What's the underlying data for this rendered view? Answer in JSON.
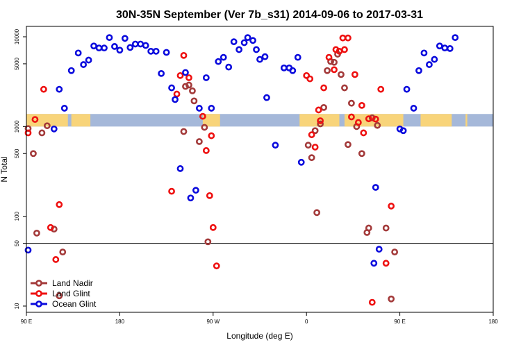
{
  "chart_data": {
    "type": "scatter",
    "title": "30N-35N September (Ver 7b_s31)   2014-09-06 to 2017-03-31",
    "xlabel": "Longitude (deg E)",
    "ylabel": "N Total",
    "y_scale": "log",
    "xlim": [
      -90,
      180
    ],
    "ylim": [
      8,
      13000
    ],
    "x_ticks": [
      {
        "value": -90,
        "label": "90 E"
      },
      {
        "value": -36,
        "label": "180"
      },
      {
        "value": 18,
        "label": "90 W"
      },
      {
        "value": 72,
        "label": "0"
      },
      {
        "value": 126,
        "label": "90 E"
      },
      {
        "value": 180,
        "label": "180"
      }
    ],
    "y_ticks": [
      {
        "value": 10,
        "label": "10"
      },
      {
        "value": 50,
        "label": "50"
      },
      {
        "value": 100,
        "label": "100"
      },
      {
        "value": 500,
        "label": "500"
      },
      {
        "value": 1000,
        "label": "1000"
      },
      {
        "value": 5000,
        "label": "5000"
      },
      {
        "value": 10000,
        "label": "10000"
      }
    ],
    "reference_line": {
      "y": 50,
      "color": "#000000"
    },
    "land_mask": {
      "y_low": 1000,
      "y_high": 1380,
      "ocean_color": "#a5b8d9",
      "land_color": "#f8d47a",
      "land_spans": [
        [
          -90,
          -66
        ],
        [
          -64,
          -53
        ],
        [
          12,
          22
        ],
        [
          68,
          91
        ],
        [
          94,
          128
        ],
        [
          138,
          156
        ],
        [
          164,
          165
        ]
      ]
    },
    "legend": [
      {
        "name": "Land Nadir",
        "color": "#a33a3a"
      },
      {
        "name": "Land Glint",
        "color": "#ee1111"
      },
      {
        "name": "Ocean Glint",
        "color": "#0b0bdd"
      }
    ],
    "series": [
      {
        "name": "Land Nadir",
        "color": "#a33a3a",
        "points": [
          [
            -89,
            950
          ],
          [
            -86,
            500
          ],
          [
            -84,
            65
          ],
          [
            -81,
            850
          ],
          [
            -78,
            1020
          ],
          [
            -74,
            72
          ],
          [
            -71,
            13
          ],
          [
            -69,
            40
          ],
          [
            1,
            880
          ],
          [
            2,
            2800
          ],
          [
            4,
            2900
          ],
          [
            6,
            2500
          ],
          [
            7,
            1930
          ],
          [
            10,
            680
          ],
          [
            13,
            980
          ],
          [
            15,
            52
          ],
          [
            73,
            620
          ],
          [
            75,
            450
          ],
          [
            77,
            900
          ],
          [
            78,
            110
          ],
          [
            80,
            1070
          ],
          [
            82,
            1630
          ],
          [
            84,
            4200
          ],
          [
            86,
            5300
          ],
          [
            88,
            5200
          ],
          [
            90,
            6400
          ],
          [
            92,
            3800
          ],
          [
            94,
            2700
          ],
          [
            96,
            630
          ],
          [
            98,
            1820
          ],
          [
            101,
            1000
          ],
          [
            104,
            500
          ],
          [
            107,
            66
          ],
          [
            108,
            74
          ],
          [
            110,
            1250
          ],
          [
            113,
            1030
          ],
          [
            118,
            74
          ],
          [
            121,
            12
          ],
          [
            123,
            40
          ]
        ]
      },
      {
        "name": "Land Glint",
        "color": "#ee1111",
        "points": [
          [
            -89,
            850
          ],
          [
            -85,
            1200
          ],
          [
            -80,
            2600
          ],
          [
            -76,
            75
          ],
          [
            -73,
            33
          ],
          [
            -71,
            135
          ],
          [
            -6,
            190
          ],
          [
            -3,
            2300
          ],
          [
            -1,
            3700
          ],
          [
            1,
            6200
          ],
          [
            4,
            3500
          ],
          [
            12,
            1300
          ],
          [
            14,
            540
          ],
          [
            16,
            170
          ],
          [
            17,
            790
          ],
          [
            18,
            75
          ],
          [
            20,
            28
          ],
          [
            72,
            3700
          ],
          [
            74,
            3400
          ],
          [
            75,
            810
          ],
          [
            77,
            590
          ],
          [
            79,
            1530
          ],
          [
            80,
            1160
          ],
          [
            82,
            2700
          ],
          [
            85,
            5900
          ],
          [
            88,
            4300
          ],
          [
            89,
            7200
          ],
          [
            91,
            6900
          ],
          [
            93,
            9700
          ],
          [
            94,
            7200
          ],
          [
            96,
            9700
          ],
          [
            98,
            1280
          ],
          [
            100,
            3800
          ],
          [
            102,
            1110
          ],
          [
            104,
            1720
          ],
          [
            105,
            850
          ],
          [
            108,
            1220
          ],
          [
            110,
            11
          ],
          [
            112,
            1210
          ],
          [
            115,
            2600
          ],
          [
            118,
            30
          ],
          [
            121,
            130
          ]
        ]
      },
      {
        "name": "Ocean Glint",
        "color": "#0b0bdd",
        "points": [
          [
            -89,
            42
          ],
          [
            -74,
            940
          ],
          [
            -71,
            2600
          ],
          [
            -68,
            1600
          ],
          [
            -64,
            4200
          ],
          [
            -60,
            6600
          ],
          [
            -57,
            4900
          ],
          [
            -54,
            5500
          ],
          [
            -51,
            7900
          ],
          [
            -48,
            7500
          ],
          [
            -45,
            7500
          ],
          [
            -42,
            9800
          ],
          [
            -39,
            7800
          ],
          [
            -36,
            7100
          ],
          [
            -33,
            9600
          ],
          [
            -30,
            7600
          ],
          [
            -27,
            8300
          ],
          [
            -24,
            8300
          ],
          [
            -21,
            8000
          ],
          [
            -18,
            6900
          ],
          [
            -15,
            6900
          ],
          [
            -12,
            3900
          ],
          [
            -9,
            6700
          ],
          [
            -6,
            2700
          ],
          [
            -4,
            2000
          ],
          [
            -1,
            340
          ],
          [
            2,
            4000
          ],
          [
            5,
            160
          ],
          [
            8,
            195
          ],
          [
            10,
            1600
          ],
          [
            14,
            3500
          ],
          [
            17,
            1600
          ],
          [
            21,
            5300
          ],
          [
            24,
            5900
          ],
          [
            27,
            4600
          ],
          [
            30,
            8800
          ],
          [
            33,
            7200
          ],
          [
            36,
            8600
          ],
          [
            38,
            9800
          ],
          [
            41,
            9100
          ],
          [
            43,
            7200
          ],
          [
            45,
            5600
          ],
          [
            48,
            6000
          ],
          [
            49,
            2100
          ],
          [
            54,
            620
          ],
          [
            59,
            4500
          ],
          [
            62,
            4500
          ],
          [
            64,
            4200
          ],
          [
            67,
            5900
          ],
          [
            69,
            400
          ],
          [
            112,
            210
          ],
          [
            111,
            30
          ],
          [
            114,
            43
          ],
          [
            126,
            940
          ],
          [
            128,
            900
          ],
          [
            130,
            2600
          ],
          [
            134,
            1600
          ],
          [
            137,
            4200
          ],
          [
            140,
            6600
          ],
          [
            143,
            4900
          ],
          [
            146,
            5600
          ],
          [
            149,
            7900
          ],
          [
            152,
            7500
          ],
          [
            155,
            7400
          ],
          [
            158,
            9800
          ]
        ]
      }
    ]
  }
}
